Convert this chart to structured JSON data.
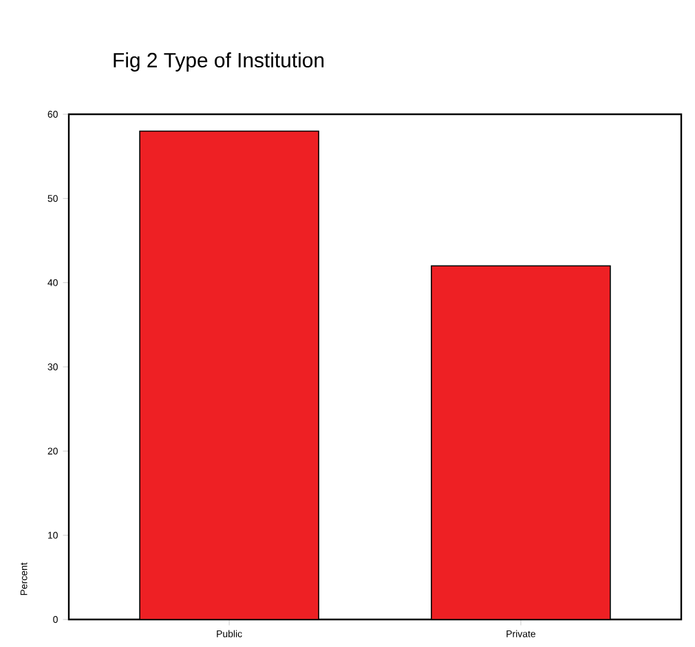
{
  "chart_data": {
    "type": "bar",
    "title": "Fig 2 Type of Institution",
    "ylabel": "Percent",
    "categories": [
      "Public",
      "Private"
    ],
    "values": [
      58,
      42
    ],
    "color": "#ee2024",
    "ylim": [
      0,
      60
    ],
    "yticks": [
      0,
      10,
      20,
      30,
      40,
      50,
      60
    ],
    "grid": false
  }
}
